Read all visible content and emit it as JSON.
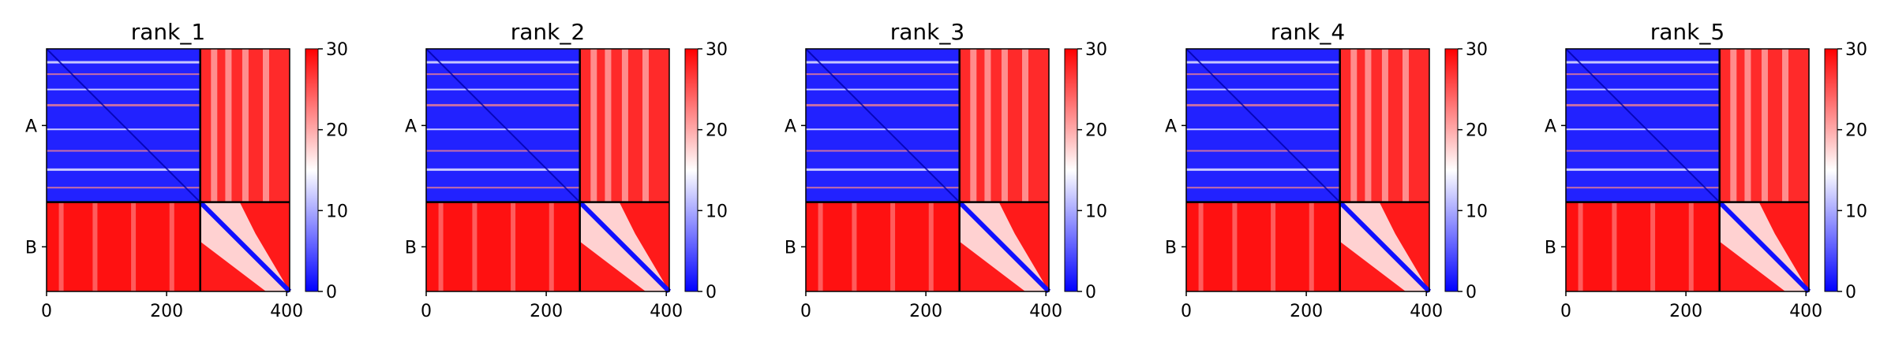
{
  "chart_data": {
    "type": "heatmap",
    "colorbar": {
      "range": [
        0,
        30
      ],
      "ticks": [
        0,
        10,
        20,
        30
      ],
      "colors": {
        "low": "#0000ff",
        "mid": "#ffffff",
        "high": "#ff0000"
      }
    },
    "x_ticks": [
      0,
      200,
      400
    ],
    "xlim": [
      0,
      405
    ],
    "chain_boundary": 256,
    "chain_labels": [
      "A",
      "B"
    ],
    "panels": [
      {
        "title": "rank_1"
      },
      {
        "title": "rank_2"
      },
      {
        "title": "rank_3"
      },
      {
        "title": "rank_4"
      },
      {
        "title": "rank_5"
      }
    ]
  }
}
